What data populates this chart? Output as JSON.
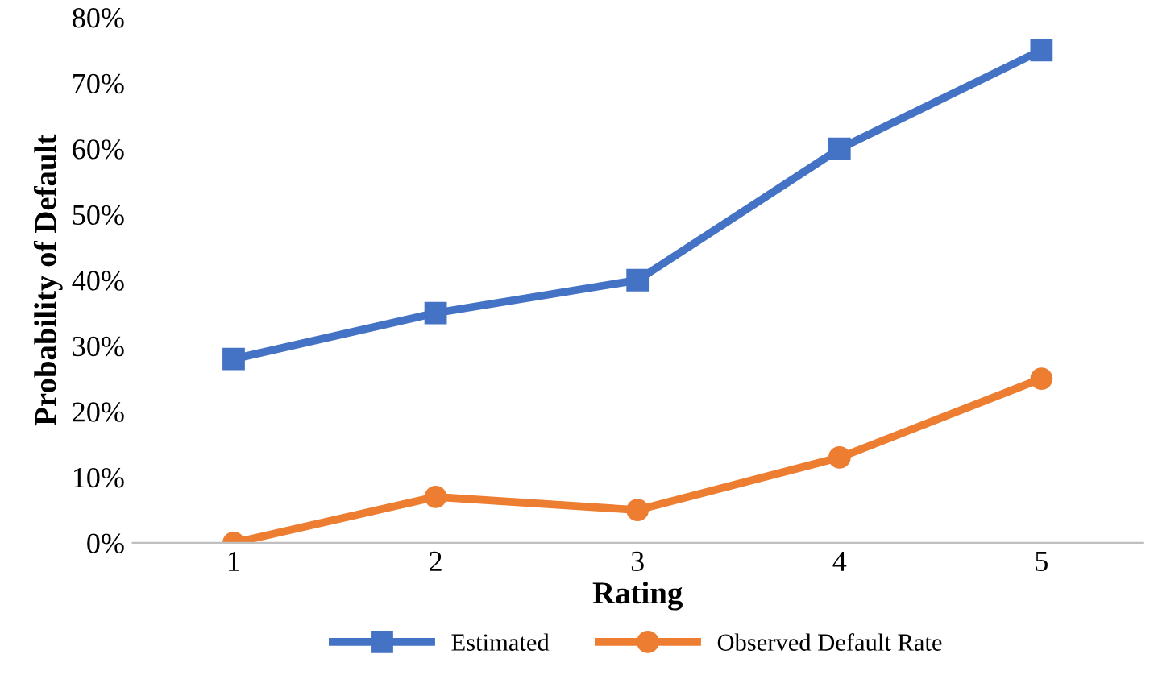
{
  "chart_data": {
    "type": "line",
    "xlabel": "Rating",
    "ylabel": "Probability of Default",
    "categories": [
      "1",
      "2",
      "3",
      "4",
      "5"
    ],
    "series": [
      {
        "name": "Estimated",
        "color": "#4472c4",
        "marker": "square",
        "values": [
          28,
          35,
          40,
          60,
          75
        ]
      },
      {
        "name": "Observed Default Rate",
        "color": "#ed7d31",
        "marker": "circle",
        "values": [
          0,
          7,
          5,
          13,
          25
        ]
      }
    ],
    "ylim": [
      0,
      80
    ],
    "yticks": [
      {
        "value": 0,
        "label": "0%"
      },
      {
        "value": 10,
        "label": "10%"
      },
      {
        "value": 20,
        "label": "20%"
      },
      {
        "value": 30,
        "label": "30%"
      },
      {
        "value": 40,
        "label": "40%"
      },
      {
        "value": 50,
        "label": "50%"
      },
      {
        "value": 60,
        "label": "60%"
      },
      {
        "value": 70,
        "label": "70%"
      },
      {
        "value": 80,
        "label": "80%"
      }
    ],
    "grid": false,
    "legend": "bottom",
    "line_style": "solid"
  }
}
